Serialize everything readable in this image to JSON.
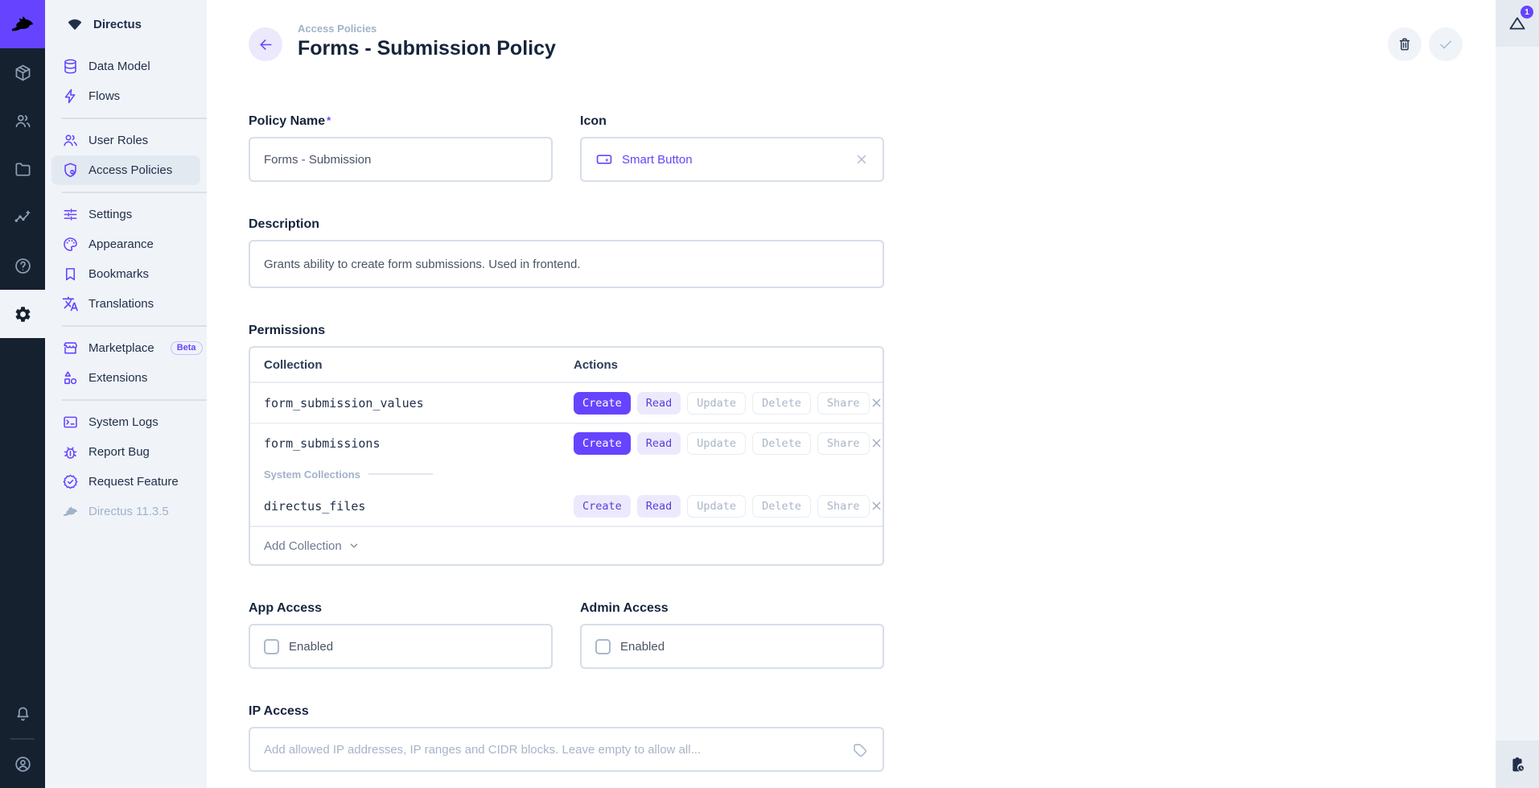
{
  "colors": {
    "accent": "#6644FF",
    "module_bar_bg": "#16212F",
    "nav_bg": "#F0F4F9",
    "selected_bg": "#E3E9F1",
    "badge_full_bg": "#6644FF",
    "badge_custom_bg": "#EDE9FD",
    "badge_custom_text": "#5A3DD8",
    "muted_text": "#A2B2C8"
  },
  "module_bar": {
    "logo": {
      "icon": "rabbit"
    },
    "items": [
      {
        "name": "content",
        "icon": "box"
      },
      {
        "name": "users",
        "icon": "users"
      },
      {
        "name": "files",
        "icon": "folder"
      },
      {
        "name": "insights",
        "icon": "insights"
      },
      {
        "name": "help",
        "icon": "help"
      },
      {
        "name": "settings",
        "icon": "gear",
        "active": true
      }
    ],
    "bottom": [
      {
        "name": "notifications",
        "icon": "bell"
      },
      {
        "name": "account",
        "icon": "avatar"
      }
    ]
  },
  "sidebar": {
    "project_name": "Directus",
    "groups": [
      {
        "items": [
          {
            "label": "Data Model",
            "icon": "database"
          },
          {
            "label": "Flows",
            "icon": "bolt"
          }
        ]
      },
      {
        "items": [
          {
            "label": "User Roles",
            "icon": "user-roles"
          },
          {
            "label": "Access Policies",
            "icon": "shield",
            "selected": true
          }
        ]
      },
      {
        "items": [
          {
            "label": "Settings",
            "icon": "tune"
          },
          {
            "label": "Appearance",
            "icon": "palette"
          },
          {
            "label": "Bookmarks",
            "icon": "bookmark"
          },
          {
            "label": "Translations",
            "icon": "translate"
          }
        ]
      },
      {
        "items": [
          {
            "label": "Marketplace",
            "icon": "storefront",
            "badge": "Beta"
          },
          {
            "label": "Extensions",
            "icon": "shapes"
          }
        ]
      },
      {
        "items": [
          {
            "label": "System Logs",
            "icon": "terminal"
          },
          {
            "label": "Report Bug",
            "icon": "bug"
          },
          {
            "label": "Request Feature",
            "icon": "seal-check"
          }
        ]
      }
    ],
    "version": {
      "label": "Directus 11.3.5",
      "icon": "rabbit"
    }
  },
  "header": {
    "breadcrumb": "Access Policies",
    "title": "Forms - Submission Policy"
  },
  "form": {
    "policy_name": {
      "label": "Policy Name",
      "required_mark": "*",
      "value": "Forms - Submission"
    },
    "icon_field": {
      "label": "Icon",
      "value": "Smart Button",
      "icon": "smart-button"
    },
    "description": {
      "label": "Description",
      "value": "Grants ability to create form submissions. Used in frontend."
    },
    "permissions": {
      "label": "Permissions",
      "columns": [
        "Collection",
        "Actions"
      ],
      "rows": [
        {
          "collection": "form_submission_values",
          "actions": [
            {
              "label": "Create",
              "level": "full"
            },
            {
              "label": "Read",
              "level": "custom"
            },
            {
              "label": "Update",
              "level": "none"
            },
            {
              "label": "Delete",
              "level": "none"
            },
            {
              "label": "Share",
              "level": "none"
            }
          ]
        },
        {
          "collection": "form_submissions",
          "actions": [
            {
              "label": "Create",
              "level": "full"
            },
            {
              "label": "Read",
              "level": "custom"
            },
            {
              "label": "Update",
              "level": "none"
            },
            {
              "label": "Delete",
              "level": "none"
            },
            {
              "label": "Share",
              "level": "none"
            }
          ]
        },
        {
          "collection": "directus_files",
          "group": "System Collections",
          "actions": [
            {
              "label": "Create",
              "level": "custom"
            },
            {
              "label": "Read",
              "level": "custom"
            },
            {
              "label": "Update",
              "level": "none"
            },
            {
              "label": "Delete",
              "level": "none"
            },
            {
              "label": "Share",
              "level": "none"
            }
          ]
        }
      ],
      "add_label": "Add Collection"
    },
    "app_access": {
      "label": "App Access",
      "checkbox_label": "Enabled",
      "checked": false
    },
    "admin_access": {
      "label": "Admin Access",
      "checkbox_label": "Enabled",
      "checked": false
    },
    "ip_access": {
      "label": "IP Access",
      "placeholder": "Add allowed IP addresses, IP ranges and CIDR blocks. Leave empty to allow all..."
    }
  },
  "right_sidebar": {
    "notification_count": "1"
  }
}
